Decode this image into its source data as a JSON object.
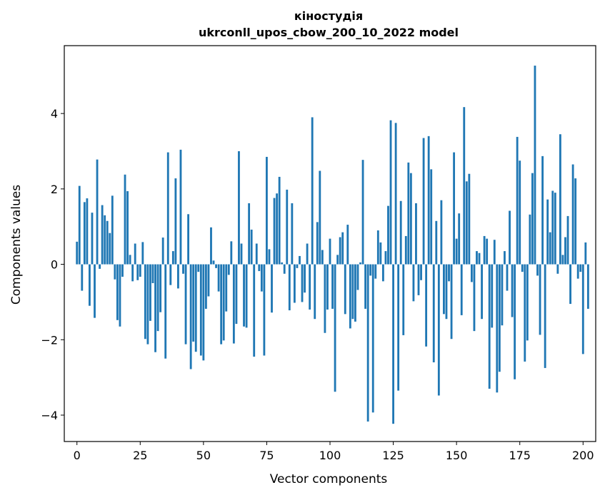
{
  "chart_data": {
    "type": "bar",
    "title": "кіностудія",
    "subtitle": "ukrconll_upos_cbow_200_10_2022 model",
    "xlabel": "Vector components",
    "ylabel": "Components values",
    "xlim": [
      -5,
      205
    ],
    "ylim": [
      -4.7,
      5.8
    ],
    "xticks": [
      0,
      25,
      50,
      75,
      100,
      125,
      150,
      175,
      200
    ],
    "yticks": [
      -4,
      -2,
      0,
      2,
      4
    ],
    "ytick_labels": [
      "−4",
      "−2",
      "0",
      "2",
      "4"
    ],
    "bar_color": "#1f77b4",
    "grid": false,
    "values": [
      0.6,
      2.08,
      -0.7,
      1.65,
      1.75,
      -1.1,
      1.37,
      -1.42,
      2.78,
      -0.12,
      1.57,
      1.3,
      1.15,
      0.83,
      1.82,
      -0.4,
      -1.48,
      -1.65,
      -0.33,
      2.38,
      1.94,
      0.25,
      -0.45,
      0.55,
      -0.42,
      -0.33,
      0.59,
      -1.98,
      -2.12,
      -1.5,
      -0.5,
      -2.33,
      -1.77,
      -1.27,
      0.71,
      -2.5,
      2.97,
      -0.55,
      0.35,
      2.28,
      -0.64,
      3.04,
      -0.25,
      -2.12,
      1.33,
      -2.78,
      -2.05,
      -2.32,
      -0.2,
      -2.42,
      -2.55,
      -1.18,
      -0.85,
      0.98,
      0.1,
      -0.1,
      -0.72,
      -2.12,
      -2.02,
      -1.25,
      -0.28,
      0.61,
      -2.1,
      -1.58,
      3.0,
      0.55,
      -1.65,
      -1.68,
      1.62,
      0.92,
      -2.45,
      0.55,
      -0.18,
      -0.72,
      -2.42,
      2.85,
      0.4,
      -1.28,
      1.76,
      1.88,
      2.32,
      0.05,
      -0.25,
      1.98,
      -1.22,
      1.62,
      -1.02,
      -0.1,
      0.22,
      -1.0,
      -0.75,
      0.55,
      -1.2,
      3.9,
      -1.45,
      1.12,
      2.48,
      0.38,
      -1.82,
      -1.2,
      0.68,
      -1.18,
      -3.38,
      0.25,
      0.72,
      0.85,
      -1.32,
      1.05,
      -1.7,
      -1.45,
      -1.52,
      -0.68,
      0.05,
      2.77,
      -1.18,
      -4.17,
      -0.3,
      -3.93,
      -0.38,
      0.9,
      0.58,
      -0.45,
      0.35,
      1.55,
      3.82,
      -4.23,
      3.75,
      -3.35,
      1.68,
      -1.88,
      0.75,
      2.7,
      2.42,
      -0.98,
      1.62,
      -0.82,
      -0.42,
      3.35,
      -2.18,
      3.4,
      2.52,
      -2.6,
      1.15,
      -3.48,
      1.7,
      -1.32,
      -1.45,
      -0.45,
      -1.98,
      2.97,
      0.68,
      1.35,
      -1.35,
      4.17,
      2.2,
      2.4,
      -0.47,
      -1.77,
      0.35,
      0.3,
      -1.45,
      0.75,
      0.68,
      -3.3,
      -1.68,
      0.65,
      -3.4,
      -2.85,
      -1.62,
      0.35,
      -0.7,
      1.42,
      -1.4,
      -3.05,
      3.38,
      2.75,
      -0.2,
      -2.58,
      -2.02,
      1.32,
      2.42,
      5.27,
      -0.3,
      -1.87,
      2.87,
      -2.75,
      1.72,
      0.85,
      1.95,
      1.9,
      -0.25,
      3.45,
      0.25,
      0.72,
      1.28,
      -1.05,
      2.65,
      2.28,
      -0.38,
      -0.2,
      -2.38,
      0.58,
      -1.18
    ]
  }
}
